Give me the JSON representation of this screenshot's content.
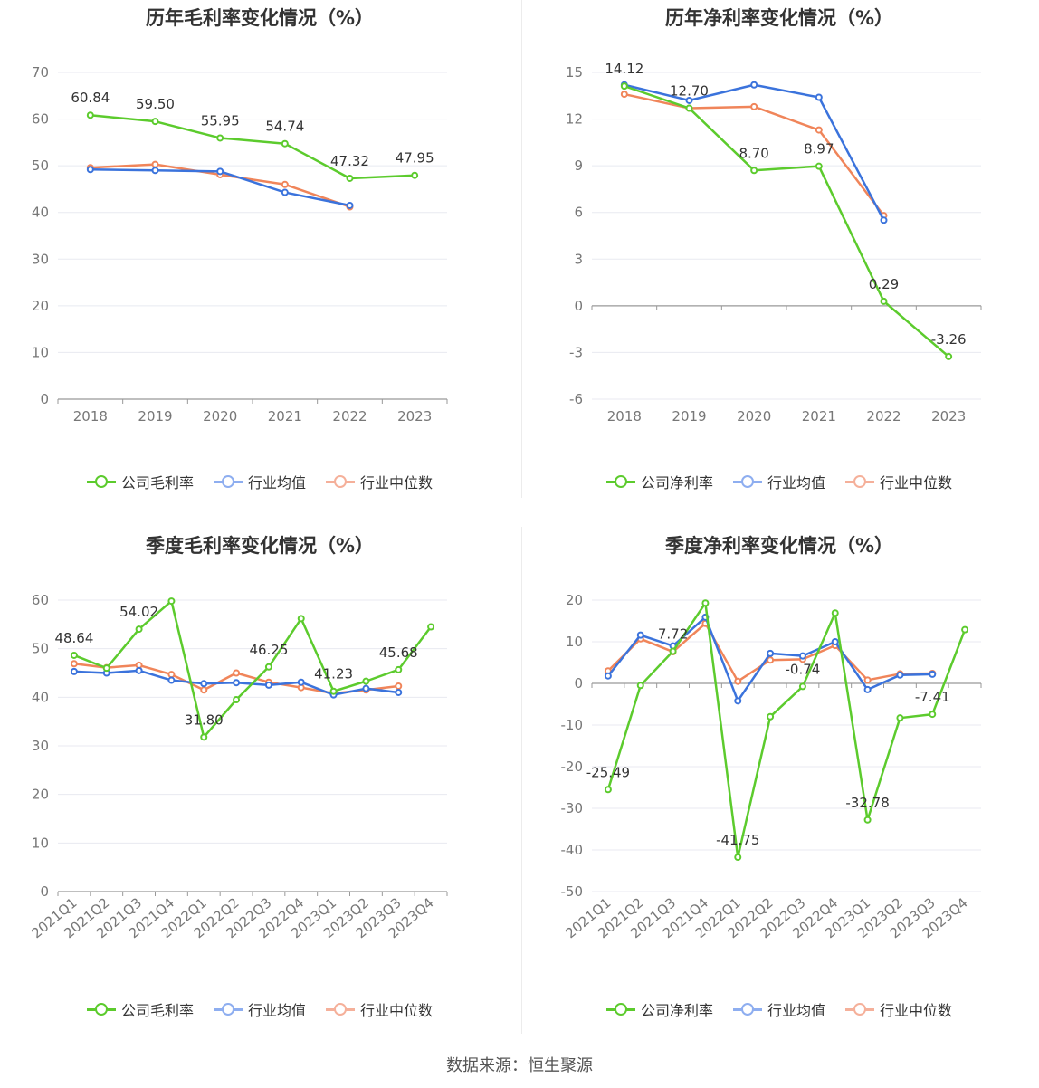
{
  "source": "数据来源：恒生聚源",
  "colors": {
    "company": "#5ccb2d",
    "avg": "#3b73dc",
    "median": "#f0855a"
  },
  "chart_data": [
    {
      "type": "line",
      "title": "历年毛利率变化情况（%）",
      "categories": [
        "2018",
        "2019",
        "2020",
        "2021",
        "2022",
        "2023"
      ],
      "ylim": [
        0,
        70
      ],
      "yticks": [
        0,
        10,
        20,
        30,
        40,
        50,
        60,
        70
      ],
      "legend": [
        "公司毛利率",
        "行业均值",
        "行业中位数"
      ],
      "series": [
        {
          "name": "公司毛利率",
          "values": [
            60.84,
            59.5,
            55.95,
            54.74,
            47.32,
            47.95
          ]
        },
        {
          "name": "行业均值",
          "values": [
            49.2,
            49.0,
            48.8,
            44.3,
            41.5,
            null
          ]
        },
        {
          "name": "行业中位数",
          "values": [
            49.6,
            50.3,
            48.1,
            46.0,
            41.2,
            null
          ]
        }
      ],
      "labels": [
        {
          "i": 0,
          "text": "60.84"
        },
        {
          "i": 1,
          "text": "59.50"
        },
        {
          "i": 2,
          "text": "55.95"
        },
        {
          "i": 3,
          "text": "54.74"
        },
        {
          "i": 4,
          "text": "47.32"
        },
        {
          "i": 5,
          "text": "47.95"
        }
      ]
    },
    {
      "type": "line",
      "title": "历年净利率变化情况（%）",
      "categories": [
        "2018",
        "2019",
        "2020",
        "2021",
        "2022",
        "2023"
      ],
      "ylim": [
        -6,
        15
      ],
      "yticks": [
        -6,
        -3,
        0,
        3,
        6,
        9,
        12,
        15
      ],
      "legend": [
        "公司净利率",
        "行业均值",
        "行业中位数"
      ],
      "series": [
        {
          "name": "公司净利率",
          "values": [
            14.12,
            12.7,
            8.7,
            8.97,
            0.29,
            -3.26
          ]
        },
        {
          "name": "行业均值",
          "values": [
            14.2,
            13.2,
            14.2,
            13.4,
            5.5,
            null
          ]
        },
        {
          "name": "行业中位数",
          "values": [
            13.6,
            12.7,
            12.8,
            11.3,
            5.8,
            null
          ]
        }
      ],
      "labels": [
        {
          "i": 0,
          "text": "14.12"
        },
        {
          "i": 1,
          "text": "12.70"
        },
        {
          "i": 2,
          "text": "8.70"
        },
        {
          "i": 3,
          "text": "8.97"
        },
        {
          "i": 4,
          "text": "0.29"
        },
        {
          "i": 5,
          "text": "-3.26"
        }
      ]
    },
    {
      "type": "line",
      "title": "季度毛利率变化情况（%）",
      "categories": [
        "2021Q1",
        "2021Q2",
        "2021Q3",
        "2021Q4",
        "2022Q1",
        "2022Q2",
        "2022Q3",
        "2022Q4",
        "2023Q1",
        "2023Q2",
        "2023Q3",
        "2023Q4"
      ],
      "ylim": [
        0,
        60
      ],
      "yticks": [
        0,
        10,
        20,
        30,
        40,
        50,
        60
      ],
      "legend": [
        "公司毛利率",
        "行业均值",
        "行业中位数"
      ],
      "series": [
        {
          "name": "公司毛利率",
          "values": [
            48.64,
            46.0,
            54.02,
            59.8,
            31.8,
            39.5,
            46.25,
            56.2,
            41.23,
            43.3,
            45.68,
            54.5
          ]
        },
        {
          "name": "行业均值",
          "values": [
            45.3,
            45.0,
            45.5,
            43.5,
            42.8,
            43.0,
            42.5,
            43.1,
            40.5,
            41.8,
            41.0,
            null
          ]
        },
        {
          "name": "行业中位数",
          "values": [
            46.9,
            46.1,
            46.6,
            44.7,
            41.5,
            45.0,
            43.1,
            42.0,
            40.8,
            41.5,
            42.3,
            null
          ]
        }
      ],
      "labels": [
        {
          "i": 0,
          "text": "48.64"
        },
        {
          "i": 2,
          "text": "54.02"
        },
        {
          "i": 4,
          "text": "31.80"
        },
        {
          "i": 6,
          "text": "46.25"
        },
        {
          "i": 8,
          "text": "41.23"
        },
        {
          "i": 10,
          "text": "45.68"
        }
      ]
    },
    {
      "type": "line",
      "title": "季度净利率变化情况（%）",
      "categories": [
        "2021Q1",
        "2021Q2",
        "2021Q3",
        "2021Q4",
        "2022Q1",
        "2022Q2",
        "2022Q3",
        "2022Q4",
        "2023Q1",
        "2023Q2",
        "2023Q3",
        "2023Q4"
      ],
      "ylim": [
        -50,
        20
      ],
      "yticks": [
        -50,
        -40,
        -30,
        -20,
        -10,
        0,
        10,
        20
      ],
      "legend": [
        "公司净利率",
        "行业均值",
        "行业中位数"
      ],
      "series": [
        {
          "name": "公司净利率",
          "values": [
            -25.49,
            -0.5,
            7.72,
            19.3,
            -41.75,
            -8.0,
            -0.74,
            16.9,
            -32.78,
            -8.3,
            -7.41,
            12.9
          ]
        },
        {
          "name": "行业均值",
          "values": [
            1.8,
            11.6,
            9.0,
            15.9,
            -4.2,
            7.2,
            6.6,
            10.0,
            -1.5,
            2.0,
            2.2,
            null
          ]
        },
        {
          "name": "行业中位数",
          "values": [
            3.0,
            10.7,
            7.6,
            14.4,
            0.5,
            5.6,
            5.8,
            9.1,
            0.8,
            2.3,
            2.4,
            null
          ]
        }
      ],
      "labels": [
        {
          "i": 0,
          "text": "-25.49"
        },
        {
          "i": 2,
          "text": "7.72"
        },
        {
          "i": 4,
          "text": "-41.75"
        },
        {
          "i": 6,
          "text": "-0.74"
        },
        {
          "i": 8,
          "text": "-32.78"
        },
        {
          "i": 10,
          "text": "-7.41"
        }
      ]
    }
  ]
}
